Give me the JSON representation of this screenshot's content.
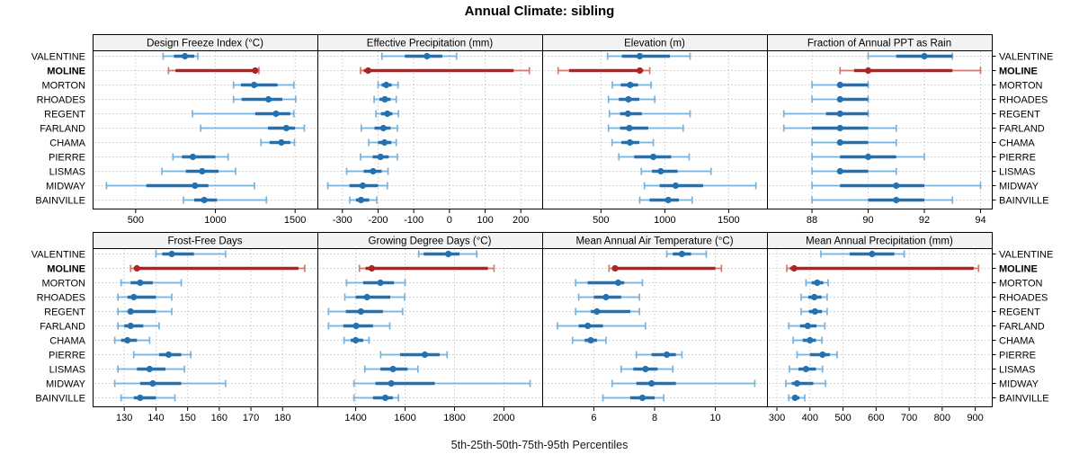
{
  "title": "Annual Climate: sibling",
  "caption": "5th-25th-50th-75th-95th Percentiles",
  "highlight_series": "MOLINE",
  "locations": [
    "VALENTINE",
    "MOLINE",
    "MORTON",
    "RHOADES",
    "REGENT",
    "FARLAND",
    "CHAMA",
    "PIERRE",
    "LISMAS",
    "MIDWAY",
    "BAINVILLE"
  ],
  "colors": {
    "series": "#2171b5",
    "series_light": "#79b2d9",
    "highlight": "#b22222",
    "highlight_light": "#cc7a70",
    "header_bg": "#f2f2f2",
    "border": "#000000",
    "grid": "#c9c9c9",
    "text": "#000000"
  },
  "chart_data": {
    "type": "scatter",
    "variant": "dot-and-whisker percentile trellis (5th, 25th, 50th, 75th, 95th)",
    "grid": "dotted",
    "layout": {
      "rows": 2,
      "cols": 4
    },
    "percentile_labels": [
      "p5",
      "p25",
      "p50",
      "p75",
      "p95"
    ],
    "panels": [
      {
        "title": "Design Freeze Index (°C)",
        "xlim": [
          230,
          1640
        ],
        "ticks": [
          500,
          1000,
          1500
        ],
        "series": {
          "VALENTINE": [
            672,
            740,
            809,
            868,
            890
          ],
          "MOLINE": [
            706,
            750,
            1250,
            1260,
            1273
          ],
          "MORTON": [
            1114,
            1160,
            1243,
            1390,
            1492
          ],
          "RHOADES": [
            1114,
            1165,
            1333,
            1420,
            1504
          ],
          "REGENT": [
            856,
            1250,
            1380,
            1470,
            1492
          ],
          "FARLAND": [
            908,
            1330,
            1445,
            1500,
            1558
          ],
          "CHAMA": [
            1286,
            1340,
            1414,
            1470,
            1496
          ],
          "PIERRE": [
            734,
            790,
            859,
            1000,
            1080
          ],
          "LISMAS": [
            665,
            815,
            917,
            1020,
            1127
          ],
          "MIDWAY": [
            317,
            567,
            872,
            956,
            1245
          ],
          "BAINVILLE": [
            800,
            867,
            930,
            1010,
            1320
          ]
        }
      },
      {
        "title": "Effective Precipitation (mm)",
        "xlim": [
          -370,
          260
        ],
        "ticks": [
          -300,
          -200,
          -100,
          0,
          100,
          200
        ],
        "series": {
          "VALENTINE": [
            -189,
            -125,
            -63,
            -20,
            20
          ],
          "MOLINE": [
            -249,
            -240,
            -228,
            180,
            224
          ],
          "MORTON": [
            -200,
            -190,
            -177,
            -162,
            -144
          ],
          "RHOADES": [
            -211,
            -196,
            -181,
            -165,
            -149
          ],
          "REGENT": [
            -206,
            -192,
            -174,
            -160,
            -143
          ],
          "FARLAND": [
            -247,
            -210,
            -185,
            -165,
            -146
          ],
          "CHAMA": [
            -226,
            -200,
            -182,
            -163,
            -149
          ],
          "PIERRE": [
            -249,
            -215,
            -193,
            -170,
            -146
          ],
          "LISMAS": [
            -288,
            -240,
            -214,
            -190,
            -172
          ],
          "MIDWAY": [
            -341,
            -280,
            -243,
            -200,
            -174
          ],
          "BAINVILLE": [
            -279,
            -262,
            -248,
            -225,
            -204
          ]
        }
      },
      {
        "title": "Elevation (m)",
        "xlim": [
          40,
          1800
        ],
        "ticks": [
          500,
          1000,
          1500
        ],
        "series": {
          "VALENTINE": [
            552,
            664,
            804,
            1040,
            1198
          ],
          "MOLINE": [
            165,
            250,
            804,
            830,
            882
          ],
          "MORTON": [
            589,
            655,
            729,
            790,
            893
          ],
          "RHOADES": [
            559,
            640,
            715,
            800,
            921
          ],
          "REGENT": [
            566,
            650,
            711,
            820,
            1198
          ],
          "FARLAND": [
            559,
            650,
            722,
            870,
            1144
          ],
          "CHAMA": [
            587,
            660,
            727,
            800,
            910
          ],
          "PIERRE": [
            640,
            760,
            910,
            1050,
            1191
          ],
          "LISMAS": [
            816,
            900,
            968,
            1100,
            1362
          ],
          "MIDWAY": [
            840,
            960,
            1085,
            1300,
            1713
          ],
          "BAINVILLE": [
            804,
            880,
            1027,
            1110,
            1214
          ]
        }
      },
      {
        "title": "Fraction of Annual PPT as Rain",
        "xlim": [
          86.4,
          94.4
        ],
        "ticks": [
          88,
          90,
          92,
          94
        ],
        "series": {
          "VALENTINE": [
            90,
            91,
            92,
            93,
            93
          ],
          "MOLINE": [
            89,
            89.5,
            90,
            93,
            94
          ],
          "MORTON": [
            88,
            89,
            89,
            90,
            90
          ],
          "RHOADES": [
            88,
            89,
            89,
            90,
            90
          ],
          "REGENT": [
            87,
            88.5,
            89,
            90,
            90
          ],
          "FARLAND": [
            87,
            88,
            89,
            90,
            91
          ],
          "CHAMA": [
            88,
            89,
            89,
            90,
            91
          ],
          "PIERRE": [
            88,
            89,
            90,
            91,
            92
          ],
          "LISMAS": [
            88,
            89,
            89,
            90,
            91
          ],
          "MIDWAY": [
            88,
            89,
            91,
            92,
            94
          ],
          "BAINVILLE": [
            88,
            90,
            91,
            92,
            93
          ]
        }
      },
      {
        "title": "Frost-Free Days",
        "xlim": [
          120,
          191
        ],
        "ticks": [
          130,
          140,
          150,
          160,
          170,
          180
        ],
        "series": {
          "VALENTINE": [
            140,
            142,
            145,
            152,
            162
          ],
          "MOLINE": [
            132,
            133,
            134,
            185,
            187
          ],
          "MORTON": [
            129,
            132,
            135,
            139,
            148
          ],
          "RHOADES": [
            128,
            131,
            133,
            140,
            145
          ],
          "REGENT": [
            128,
            131,
            132,
            140,
            145
          ],
          "FARLAND": [
            128,
            130,
            132,
            136,
            141
          ],
          "CHAMA": [
            127,
            129,
            131,
            134,
            138
          ],
          "PIERRE": [
            133,
            141,
            144,
            148,
            151
          ],
          "LISMAS": [
            128,
            134,
            138,
            143,
            149
          ],
          "MIDWAY": [
            127,
            135,
            139,
            148,
            162
          ],
          "BAINVILLE": [
            129,
            133,
            135,
            140,
            146
          ]
        }
      },
      {
        "title": "Growing Degree Days (°C)",
        "xlim": [
          1245,
          2155
        ],
        "ticks": [
          1400,
          1600,
          1800,
          2000
        ],
        "series": {
          "VALENTINE": [
            1655,
            1675,
            1775,
            1820,
            1890
          ],
          "MOLINE": [
            1415,
            1440,
            1465,
            1935,
            1960
          ],
          "MORTON": [
            1363,
            1430,
            1500,
            1555,
            1600
          ],
          "RHOADES": [
            1356,
            1400,
            1446,
            1540,
            1598
          ],
          "REGENT": [
            1290,
            1360,
            1421,
            1510,
            1590
          ],
          "FARLAND": [
            1290,
            1350,
            1402,
            1470,
            1538
          ],
          "CHAMA": [
            1353,
            1380,
            1400,
            1430,
            1454
          ],
          "PIERRE": [
            1501,
            1580,
            1680,
            1740,
            1770
          ],
          "LISMAS": [
            1437,
            1500,
            1551,
            1610,
            1652
          ],
          "MIDWAY": [
            1393,
            1480,
            1544,
            1720,
            2106
          ],
          "BAINVILLE": [
            1393,
            1470,
            1520,
            1550,
            1573
          ]
        }
      },
      {
        "title": "Mean Annual Air Temperature (°C)",
        "xlim": [
          4.3,
          11.7
        ],
        "ticks": [
          6,
          8,
          10
        ],
        "series": {
          "VALENTINE": [
            8.4,
            8.6,
            8.9,
            9.2,
            9.7
          ],
          "MOLINE": [
            6.5,
            6.6,
            6.7,
            10.0,
            10.2
          ],
          "MORTON": [
            5.4,
            5.8,
            6.8,
            7.0,
            7.6
          ],
          "RHOADES": [
            5.5,
            6.0,
            6.4,
            6.9,
            7.5
          ],
          "REGENT": [
            5.4,
            5.9,
            6.1,
            7.2,
            7.5
          ],
          "FARLAND": [
            4.8,
            5.5,
            5.8,
            6.3,
            7.7
          ],
          "CHAMA": [
            5.3,
            5.7,
            5.9,
            6.1,
            6.4
          ],
          "PIERRE": [
            7.4,
            7.9,
            8.4,
            8.7,
            8.9
          ],
          "LISMAS": [
            6.9,
            7.3,
            7.7,
            8.1,
            8.6
          ],
          "MIDWAY": [
            6.6,
            7.4,
            7.9,
            8.7,
            11.3
          ],
          "BAINVILLE": [
            6.3,
            7.2,
            7.6,
            8.0,
            8.3
          ]
        }
      },
      {
        "title": "Mean Annual Precipitation (mm)",
        "xlim": [
          270,
          950
        ],
        "ticks": [
          300,
          400,
          500,
          600,
          700,
          800,
          900
        ],
        "series": {
          "VALENTINE": [
            433,
            520,
            588,
            655,
            685
          ],
          "MOLINE": [
            330,
            340,
            352,
            895,
            910
          ],
          "MORTON": [
            388,
            405,
            422,
            440,
            455
          ],
          "RHOADES": [
            373,
            395,
            413,
            435,
            452
          ],
          "REGENT": [
            373,
            397,
            415,
            436,
            452
          ],
          "FARLAND": [
            336,
            370,
            393,
            420,
            445
          ],
          "CHAMA": [
            349,
            378,
            400,
            418,
            436
          ],
          "PIERRE": [
            361,
            400,
            438,
            460,
            482
          ],
          "LISMAS": [
            338,
            365,
            388,
            418,
            438
          ],
          "MIDWAY": [
            327,
            345,
            361,
            410,
            447
          ],
          "BAINVILLE": [
            336,
            348,
            355,
            368,
            384
          ]
        }
      }
    ]
  }
}
